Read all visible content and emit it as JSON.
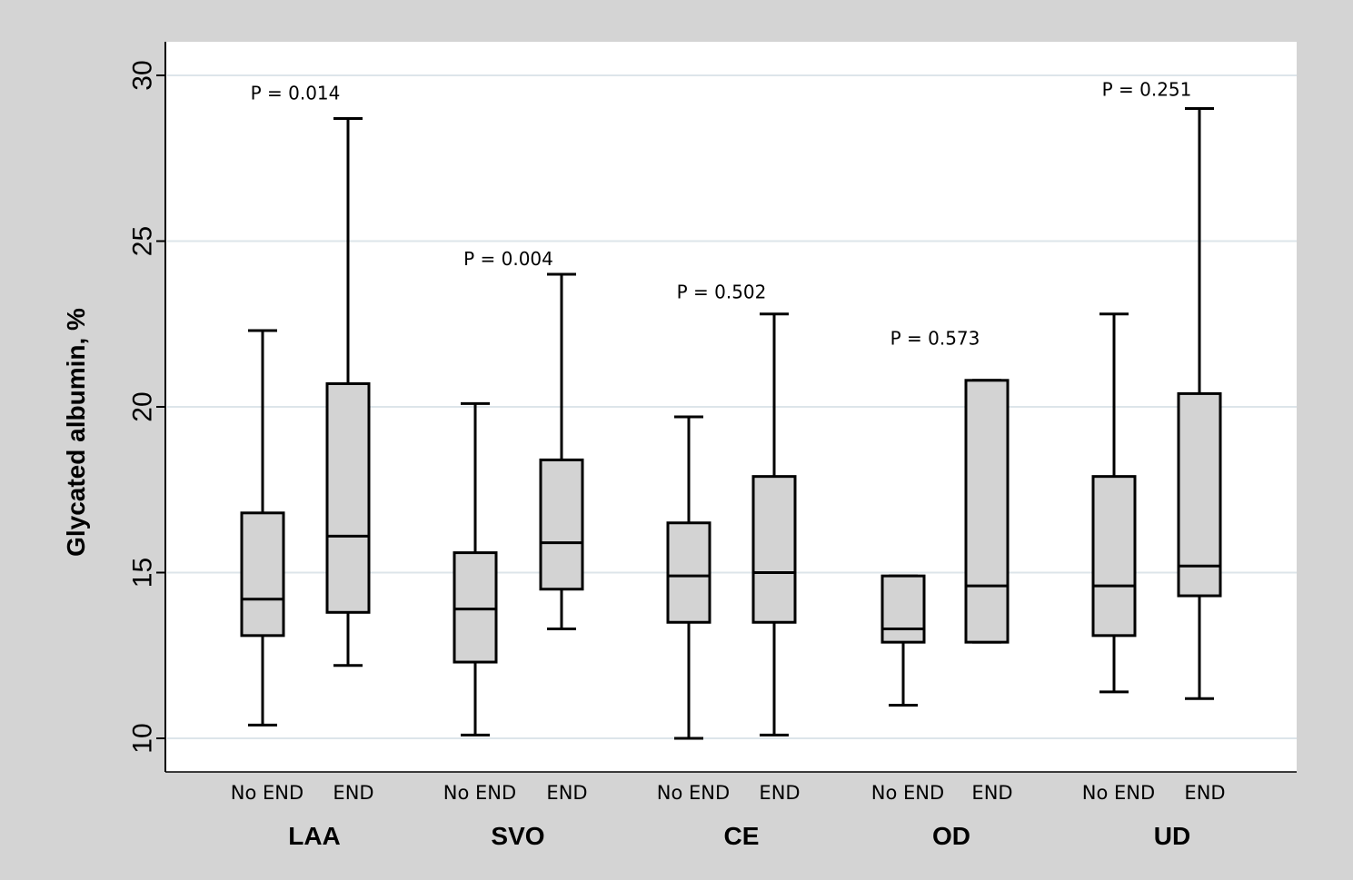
{
  "chart_data": {
    "type": "boxplot",
    "title": "",
    "xlabel": "",
    "ylabel": "Glycated albumin, %",
    "ylim": [
      9,
      31
    ],
    "yticks": [
      10,
      15,
      20,
      25,
      30
    ],
    "ytick_labels": [
      "10",
      "15",
      "20",
      "25",
      "30"
    ],
    "grid": true,
    "groups": [
      {
        "name": "LAA",
        "p_value": "P = 0.014",
        "p_y": 29.5,
        "boxes": [
          {
            "label": "No END",
            "min": 10.4,
            "q1": 13.1,
            "median": 14.2,
            "q3": 16.8,
            "max": 22.3
          },
          {
            "label": "END",
            "min": 12.2,
            "q1": 13.8,
            "median": 16.1,
            "q3": 20.7,
            "max": 28.7
          }
        ]
      },
      {
        "name": "SVO",
        "p_value": "P = 0.004",
        "p_y": 24.5,
        "boxes": [
          {
            "label": "No END",
            "min": 10.1,
            "q1": 12.3,
            "median": 13.9,
            "q3": 15.6,
            "max": 20.1
          },
          {
            "label": "END",
            "min": 13.3,
            "q1": 14.5,
            "median": 15.9,
            "q3": 18.4,
            "max": 24.0
          }
        ]
      },
      {
        "name": "CE",
        "p_value": "P = 0.502",
        "p_y": 23.5,
        "boxes": [
          {
            "label": "No END",
            "min": 10.0,
            "q1": 13.5,
            "median": 14.9,
            "q3": 16.5,
            "max": 19.7
          },
          {
            "label": "END",
            "min": 10.1,
            "q1": 13.5,
            "median": 15.0,
            "q3": 17.9,
            "max": 22.8
          }
        ]
      },
      {
        "name": "OD",
        "p_value": "P = 0.573",
        "p_y": 22.1,
        "boxes": [
          {
            "label": "No END",
            "min": 11.0,
            "q1": 12.9,
            "median": 13.3,
            "q3": 14.9,
            "max": 14.9
          },
          {
            "label": "END",
            "min": 12.9,
            "q1": 12.9,
            "median": 14.6,
            "q3": 20.8,
            "max": 20.8
          }
        ]
      },
      {
        "name": "UD",
        "p_value": "P = 0.251",
        "p_y": 29.6,
        "boxes": [
          {
            "label": "No END",
            "min": 11.4,
            "q1": 13.1,
            "median": 14.6,
            "q3": 17.9,
            "max": 22.8
          },
          {
            "label": "END",
            "min": 11.2,
            "q1": 14.3,
            "median": 15.2,
            "q3": 20.4,
            "max": 29.0
          }
        ]
      }
    ]
  },
  "colors": {
    "page_background": "#d4d4d4",
    "plot_background": "#ffffff",
    "box_fill": "#d3d3d3",
    "gridline": "#dde5ea",
    "stroke": "#000000"
  }
}
